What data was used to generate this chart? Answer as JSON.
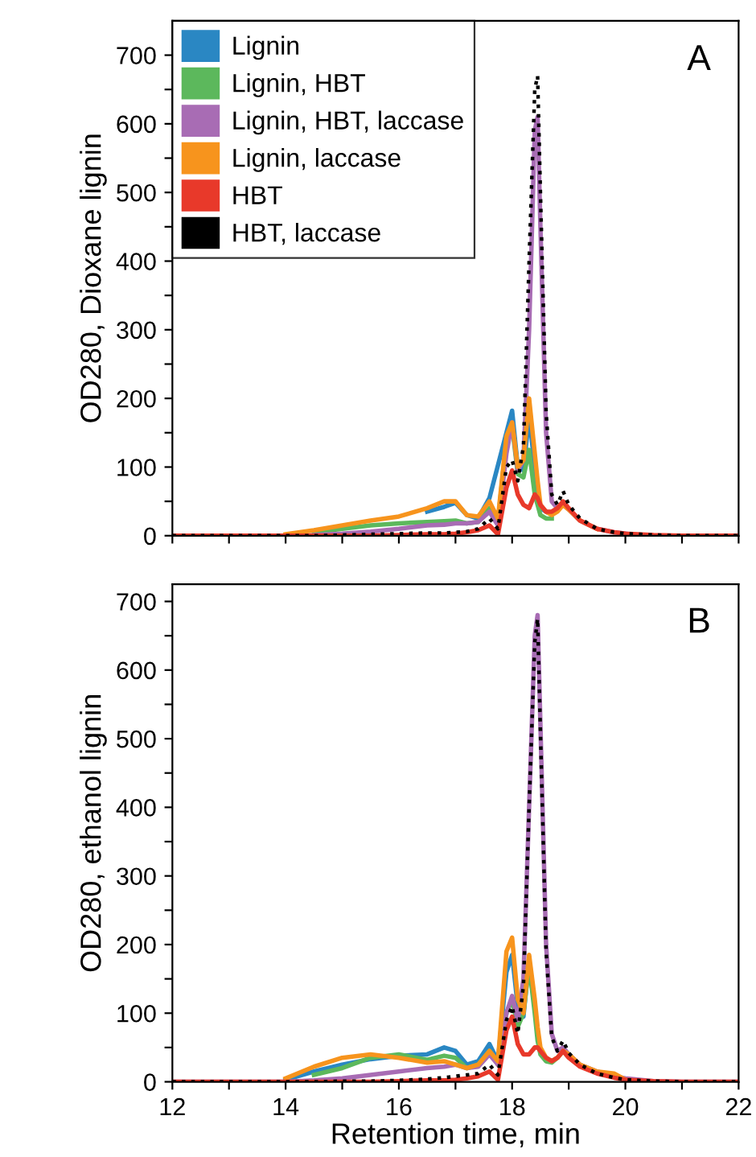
{
  "chart_data": [
    {
      "type": "line",
      "ylabel": "OD280, Dioxane lignin",
      "annotations": [
        "A"
      ],
      "tick_labels": "y",
      "legend": "top left",
      "grid": false,
      "marker": "none",
      "x": [
        12,
        13,
        13.5,
        14,
        14.5,
        15,
        15.5,
        16,
        16.5,
        16.8,
        17,
        17.2,
        17.4,
        17.6,
        17.75,
        17.9,
        18,
        18.1,
        18.2,
        18.3,
        18.4,
        18.45,
        18.5,
        18.6,
        18.7,
        18.8,
        18.9,
        19,
        19.2,
        19.5,
        19.8,
        20,
        20.5,
        21,
        22
      ],
      "xlim": [
        12,
        22
      ],
      "xticks": [
        12,
        {
          "value": 13,
          "label": null
        },
        14,
        {
          "value": 15,
          "label": null
        },
        16,
        {
          "value": 17,
          "label": null
        },
        18,
        {
          "value": 19,
          "label": null
        },
        20,
        {
          "value": 21,
          "label": null
        },
        22
      ],
      "ylim": [
        0,
        750
      ],
      "yticks": [
        0,
        {
          "value": 50,
          "label": null
        },
        100,
        {
          "value": 150,
          "label": null
        },
        200,
        {
          "value": 250,
          "label": null
        },
        300,
        {
          "value": 350,
          "label": null
        },
        400,
        {
          "value": 450,
          "label": null
        },
        500,
        {
          "value": 550,
          "label": null
        },
        600,
        {
          "value": 650,
          "label": null
        },
        700
      ],
      "series": [
        {
          "name": "Lignin",
          "color": "#2a87c3",
          "line_style": "solid",
          "x": [
            16.5,
            16.8,
            17,
            17.2,
            17.4,
            17.6,
            17.9,
            18,
            18.1,
            18.2,
            18.3,
            18.4,
            18.5,
            18.6
          ],
          "values": [
            35,
            42,
            48,
            30,
            25,
            55,
            150,
            182,
            100,
            95,
            175,
            100,
            40,
            35
          ]
        },
        {
          "name": "Lignin, HBT",
          "color": "#5cb85c",
          "line_style": "solid",
          "x": [
            14.5,
            15,
            15.5,
            16,
            16.5,
            16.8,
            17,
            17.2,
            17.4,
            17.6,
            17.75,
            17.9,
            18,
            18.1,
            18.2,
            18.3,
            18.4,
            18.5,
            18.6,
            18.7
          ],
          "values": [
            5,
            10,
            15,
            18,
            20,
            21,
            22,
            18,
            20,
            40,
            20,
            140,
            160,
            90,
            85,
            125,
            60,
            30,
            25,
            25
          ]
        },
        {
          "name": "Lignin, HBT, laccase",
          "color": "#a86cb4",
          "line_style": "solid",
          "x": [
            12,
            13,
            13.5,
            14,
            14.5,
            15,
            15.5,
            16,
            16.5,
            16.8,
            17,
            17.2,
            17.4,
            17.6,
            17.75,
            17.9,
            18,
            18.1,
            18.2,
            18.3,
            18.4,
            18.45,
            18.5,
            18.6,
            18.7,
            18.8,
            18.9,
            19,
            19.2,
            19.5,
            19.8,
            20
          ],
          "values": [
            0,
            0,
            0,
            0,
            1,
            3,
            6,
            10,
            15,
            16,
            18,
            18,
            20,
            35,
            15,
            120,
            165,
            95,
            110,
            300,
            590,
            610,
            450,
            150,
            50,
            40,
            45,
            38,
            22,
            10,
            5,
            3
          ]
        },
        {
          "name": "Lignin, laccase",
          "color": "#f7941d",
          "line_style": "solid",
          "x": [
            14,
            14.5,
            15,
            15.5,
            16,
            16.5,
            16.8,
            17,
            17.2,
            17.4,
            17.6,
            17.75,
            17.9,
            18,
            18.1,
            18.2,
            18.3,
            18.4,
            18.45,
            18.5,
            18.6,
            18.7,
            18.8,
            18.9,
            19,
            19.2,
            19.5
          ],
          "values": [
            2,
            8,
            15,
            22,
            28,
            40,
            50,
            50,
            30,
            28,
            50,
            25,
            145,
            165,
            100,
            110,
            200,
            120,
            80,
            45,
            35,
            30,
            35,
            45,
            38,
            22,
            10
          ]
        },
        {
          "name": "HBT",
          "color": "#e8392a",
          "line_style": "solid",
          "values": [
            0,
            0,
            0,
            0,
            0,
            0,
            0,
            1,
            2,
            2,
            3,
            5,
            8,
            15,
            2,
            70,
            95,
            60,
            45,
            40,
            60,
            55,
            45,
            35,
            35,
            40,
            50,
            40,
            22,
            10,
            5,
            3,
            1,
            0,
            0
          ]
        },
        {
          "name": "HBT, laccase",
          "color": "#000000",
          "line_style": "dotted",
          "values": [
            0,
            0,
            0,
            0,
            0,
            1,
            2,
            3,
            4,
            4,
            5,
            6,
            10,
            25,
            10,
            100,
            110,
            80,
            130,
            400,
            650,
            670,
            500,
            180,
            60,
            45,
            65,
            45,
            25,
            10,
            5,
            3,
            1,
            0,
            0
          ]
        }
      ]
    },
    {
      "type": "line",
      "ylabel": "OD280, ethanol lignin",
      "xlabel": "Retention time, min",
      "annotations": [
        "B"
      ],
      "grid": false,
      "marker": "none",
      "x": [
        12,
        13,
        13.5,
        14,
        14.5,
        15,
        15.5,
        16,
        16.5,
        16.8,
        17,
        17.2,
        17.4,
        17.6,
        17.75,
        17.9,
        18,
        18.1,
        18.2,
        18.3,
        18.4,
        18.45,
        18.5,
        18.6,
        18.7,
        18.8,
        18.9,
        19,
        19.2,
        19.5,
        19.8,
        20,
        20.5,
        21,
        22
      ],
      "xlim": [
        12,
        22
      ],
      "xticks": [
        12,
        {
          "value": 13,
          "label": null
        },
        14,
        {
          "value": 15,
          "label": null
        },
        16,
        {
          "value": 17,
          "label": null
        },
        18,
        {
          "value": 19,
          "label": null
        },
        20,
        {
          "value": 21,
          "label": null
        },
        22
      ],
      "ylim": [
        0,
        725
      ],
      "yticks": [
        0,
        {
          "value": 50,
          "label": null
        },
        100,
        {
          "value": 150,
          "label": null
        },
        200,
        {
          "value": 250,
          "label": null
        },
        300,
        {
          "value": 350,
          "label": null
        },
        400,
        {
          "value": 450,
          "label": null
        },
        500,
        {
          "value": 550,
          "label": null
        },
        600,
        {
          "value": 650,
          "label": null
        },
        700
      ],
      "series": [
        {
          "color": "#2a87c3",
          "line_style": "solid",
          "x": [
            14,
            14.5,
            15,
            15.5,
            16,
            16.5,
            16.8,
            17,
            17.2,
            17.4,
            17.6,
            17.75,
            17.9,
            18,
            18.1,
            18.2,
            18.3
          ],
          "values": [
            3,
            15,
            25,
            33,
            38,
            40,
            50,
            45,
            25,
            30,
            55,
            30,
            160,
            185,
            110,
            95,
            180
          ]
        },
        {
          "color": "#5cb85c",
          "line_style": "solid",
          "x": [
            14.5,
            15,
            15.5,
            16,
            16.5,
            16.8,
            17,
            17.2,
            17.4,
            17.6,
            17.75,
            17.9,
            18,
            18.1,
            18.2,
            18.3,
            18.4,
            18.45,
            18.5,
            18.6,
            18.7,
            18.8,
            18.9,
            19
          ],
          "values": [
            10,
            20,
            35,
            40,
            32,
            38,
            35,
            20,
            25,
            45,
            25,
            100,
            120,
            80,
            100,
            170,
            100,
            60,
            40,
            30,
            28,
            35,
            45,
            40
          ]
        },
        {
          "color": "#a86cb4",
          "line_style": "solid",
          "values": [
            0,
            0,
            0,
            0,
            2,
            5,
            10,
            15,
            20,
            22,
            25,
            20,
            22,
            40,
            25,
            100,
            125,
            90,
            150,
            400,
            650,
            680,
            520,
            200,
            70,
            45,
            50,
            40,
            25,
            15,
            8,
            5,
            1,
            0,
            0
          ]
        },
        {
          "color": "#f7941d",
          "line_style": "solid",
          "x": [
            14,
            14.5,
            15,
            15.5,
            16,
            16.5,
            16.8,
            17,
            17.2,
            17.4,
            17.6,
            17.75,
            17.9,
            18,
            18.1,
            18.2,
            18.3,
            18.4,
            18.45,
            18.5,
            18.6,
            18.7,
            18.8,
            18.9,
            19,
            19.2,
            19.5,
            19.8,
            20
          ],
          "values": [
            5,
            22,
            35,
            40,
            35,
            28,
            30,
            25,
            20,
            25,
            45,
            30,
            190,
            210,
            120,
            100,
            185,
            120,
            80,
            50,
            35,
            30,
            35,
            45,
            40,
            25,
            15,
            12,
            3
          ]
        },
        {
          "color": "#e8392a",
          "line_style": "solid",
          "values": [
            0,
            0,
            0,
            0,
            0,
            0,
            0,
            1,
            2,
            2,
            3,
            5,
            8,
            15,
            3,
            75,
            95,
            55,
            40,
            40,
            50,
            50,
            45,
            35,
            30,
            35,
            45,
            35,
            22,
            12,
            6,
            3,
            1,
            0,
            0
          ]
        },
        {
          "color": "#000000",
          "line_style": "dotted",
          "values": [
            0,
            0,
            0,
            0,
            0,
            1,
            1,
            2,
            4,
            6,
            8,
            10,
            12,
            25,
            10,
            90,
            110,
            70,
            140,
            400,
            640,
            675,
            510,
            190,
            65,
            45,
            60,
            42,
            25,
            12,
            6,
            3,
            1,
            0,
            0
          ]
        }
      ]
    }
  ]
}
